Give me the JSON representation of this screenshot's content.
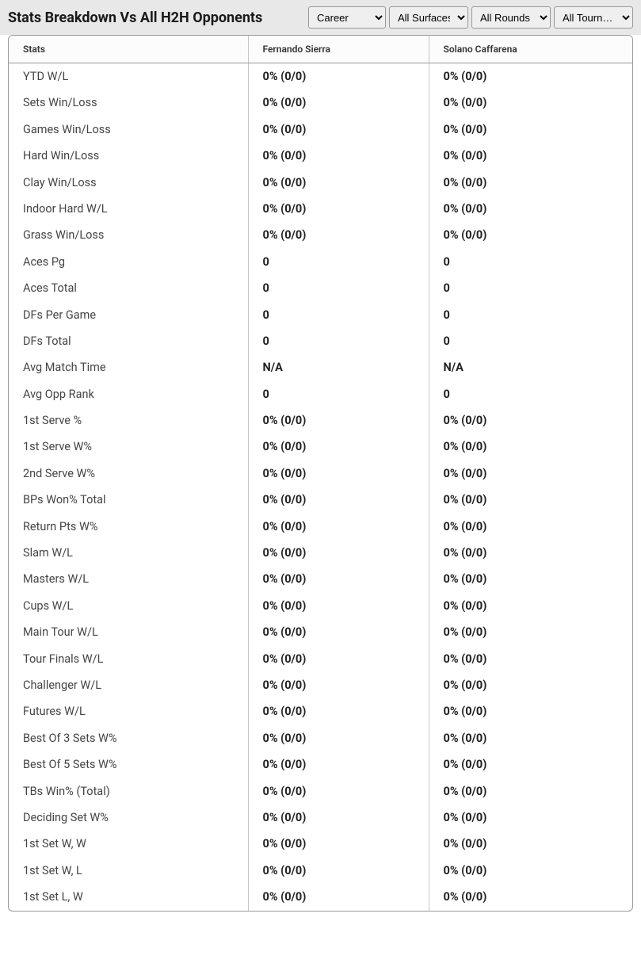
{
  "header": {
    "title": "Stats Breakdown Vs All H2H Opponents"
  },
  "filters": {
    "career": "Career",
    "surfaces": "All Surfaces",
    "rounds": "All Rounds",
    "tourn": "All Tourn…"
  },
  "table": {
    "columns": [
      "Stats",
      "Fernando Sierra",
      "Solano Caffarena"
    ],
    "rows": [
      [
        "YTD W/L",
        "0% (0/0)",
        "0% (0/0)"
      ],
      [
        "Sets Win/Loss",
        "0% (0/0)",
        "0% (0/0)"
      ],
      [
        "Games Win/Loss",
        "0% (0/0)",
        "0% (0/0)"
      ],
      [
        "Hard Win/Loss",
        "0% (0/0)",
        "0% (0/0)"
      ],
      [
        "Clay Win/Loss",
        "0% (0/0)",
        "0% (0/0)"
      ],
      [
        "Indoor Hard W/L",
        "0% (0/0)",
        "0% (0/0)"
      ],
      [
        "Grass Win/Loss",
        "0% (0/0)",
        "0% (0/0)"
      ],
      [
        "Aces Pg",
        "0",
        "0"
      ],
      [
        "Aces Total",
        "0",
        "0"
      ],
      [
        "DFs Per Game",
        "0",
        "0"
      ],
      [
        "DFs Total",
        "0",
        "0"
      ],
      [
        "Avg Match Time",
        "N/A",
        "N/A"
      ],
      [
        "Avg Opp Rank",
        "0",
        "0"
      ],
      [
        "1st Serve %",
        "0% (0/0)",
        "0% (0/0)"
      ],
      [
        "1st Serve W%",
        "0% (0/0)",
        "0% (0/0)"
      ],
      [
        "2nd Serve W%",
        "0% (0/0)",
        "0% (0/0)"
      ],
      [
        "BPs Won% Total",
        "0% (0/0)",
        "0% (0/0)"
      ],
      [
        "Return Pts W%",
        "0% (0/0)",
        "0% (0/0)"
      ],
      [
        "Slam W/L",
        "0% (0/0)",
        "0% (0/0)"
      ],
      [
        "Masters W/L",
        "0% (0/0)",
        "0% (0/0)"
      ],
      [
        "Cups W/L",
        "0% (0/0)",
        "0% (0/0)"
      ],
      [
        "Main Tour W/L",
        "0% (0/0)",
        "0% (0/0)"
      ],
      [
        "Tour Finals W/L",
        "0% (0/0)",
        "0% (0/0)"
      ],
      [
        "Challenger W/L",
        "0% (0/0)",
        "0% (0/0)"
      ],
      [
        "Futures W/L",
        "0% (0/0)",
        "0% (0/0)"
      ],
      [
        "Best Of 3 Sets W%",
        "0% (0/0)",
        "0% (0/0)"
      ],
      [
        "Best Of 5 Sets W%",
        "0% (0/0)",
        "0% (0/0)"
      ],
      [
        "TBs Win% (Total)",
        "0% (0/0)",
        "0% (0/0)"
      ],
      [
        "Deciding Set W%",
        "0% (0/0)",
        "0% (0/0)"
      ],
      [
        "1st Set W, W",
        "0% (0/0)",
        "0% (0/0)"
      ],
      [
        "1st Set W, L",
        "0% (0/0)",
        "0% (0/0)"
      ],
      [
        "1st Set L, W",
        "0% (0/0)",
        "0% (0/0)"
      ]
    ]
  },
  "colors": {
    "header_bg": "#e8e8e8",
    "border": "#999999",
    "cell_border": "#c7c7c7",
    "text": "#333333",
    "bold_text": "#222222"
  }
}
